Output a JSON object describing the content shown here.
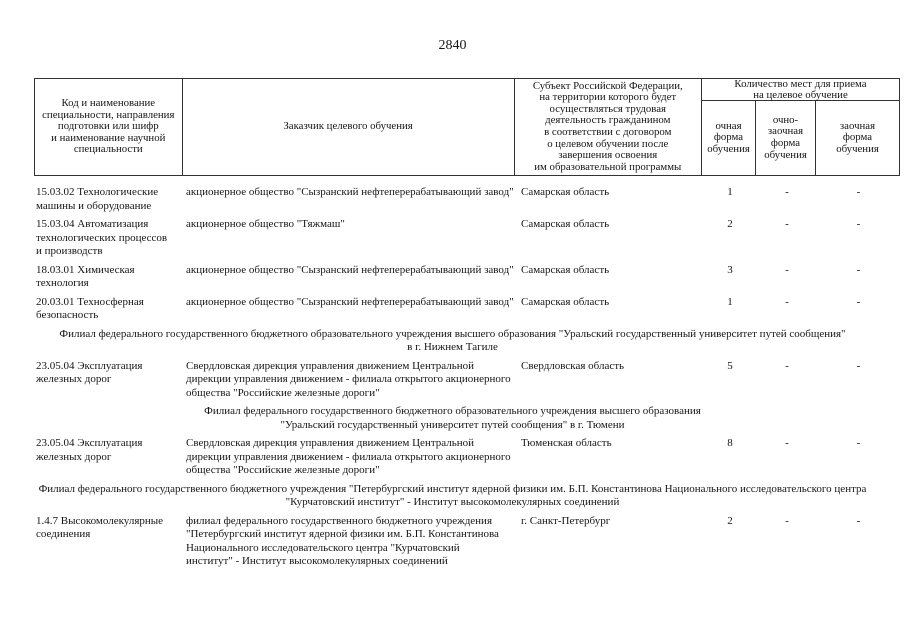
{
  "page": {
    "number": "2840"
  },
  "table": {
    "header": {
      "col_code": "Код и наименование\nспециальности, направления\nподготовки или шифр\nи наименование научной\nспециальности",
      "col_customer": "Заказчик целевого обучения",
      "col_region": "Субъект Российской Федерации,\nна территории которого будет\nосуществляться трудовая\nдеятельность гражданином\nв соответствии с договором\nо целевом обучении после\nзавершения освоения\nим образовательной программы",
      "quota_group_title": "Количество мест для приема\nна целевое обучение",
      "col_full_time": "очная\nформа\nобучения",
      "col_evening": "очно-\nзаочная\nформа\nобучения",
      "col_correspondence": "заочная\nформа\nобучения"
    },
    "items": [
      {
        "type": "row",
        "code": "15.03.02 Технологические\nмашины и оборудование",
        "customer": "акционерное общество \"Сызранский нефтеперерабатывающий завод\"",
        "region": "Самарская область",
        "full_time": "1",
        "evening": "-",
        "correspondence": "-"
      },
      {
        "type": "row",
        "code": "15.03.04 Автоматизация\nтехнологических процессов\nи производств",
        "customer": "акционерное общество \"Тяжмаш\"",
        "region": "Самарская область",
        "full_time": "2",
        "evening": "-",
        "correspondence": "-"
      },
      {
        "type": "row",
        "code": "18.03.01 Химическая\nтехнология",
        "customer": "акционерное общество \"Сызранский нефтеперерабатывающий завод\"",
        "region": "Самарская область",
        "full_time": "3",
        "evening": "-",
        "correspondence": "-"
      },
      {
        "type": "row",
        "code": "20.03.01 Техносферная\nбезопасность",
        "customer": "акционерное общество \"Сызранский нефтеперерабатывающий завод\"",
        "region": "Самарская область",
        "full_time": "1",
        "evening": "-",
        "correspondence": "-"
      },
      {
        "type": "heading",
        "text": "Филиал федерального государственного бюджетного образовательного учреждения высшего образования \"Уральский государственный университет путей сообщения\"\nв г. Нижнем Тагиле"
      },
      {
        "type": "row",
        "code": "23.05.04 Эксплуатация\nжелезных дорог",
        "customer": "Свердловская дирекция управления движением Центральной\nдирекции управления движением - филиала открытого акционерного\nобщества \"Российские железные дороги\"",
        "region": "Свердловская область",
        "full_time": "5",
        "evening": "-",
        "correspondence": "-"
      },
      {
        "type": "heading",
        "text": "Филиал федерального государственного бюджетного образовательного учреждения высшего образования\n\"Уральский государственный университет путей сообщения\" в г. Тюмени"
      },
      {
        "type": "row",
        "code": "23.05.04 Эксплуатация\nжелезных дорог",
        "customer": "Свердловская дирекция управления движением Центральной\nдирекции управления движением - филиала открытого акционерного\nобщества \"Российские железные дороги\"",
        "region": "Тюменская область",
        "full_time": "8",
        "evening": "-",
        "correspondence": "-"
      },
      {
        "type": "heading",
        "text": "Филиал федерального государственного бюджетного учреждения \"Петербургский институт ядерной физики им. Б.П. Константинова Национального исследовательского центра\n\"Курчатовский институт\" - Институт высокомолекулярных соединений"
      },
      {
        "type": "row",
        "code": "1.4.7 Высокомолекулярные\nсоединения",
        "customer": "филиал федерального государственного бюджетного учреждения\n\"Петербургский институт ядерной физики им. Б.П. Константинова\nНационального исследовательского центра \"Курчатовский\nинститут\" - Институт высокомолекулярных соединений",
        "region": "г. Санкт-Петербург",
        "full_time": "2",
        "evening": "-",
        "correspondence": "-"
      }
    ]
  }
}
